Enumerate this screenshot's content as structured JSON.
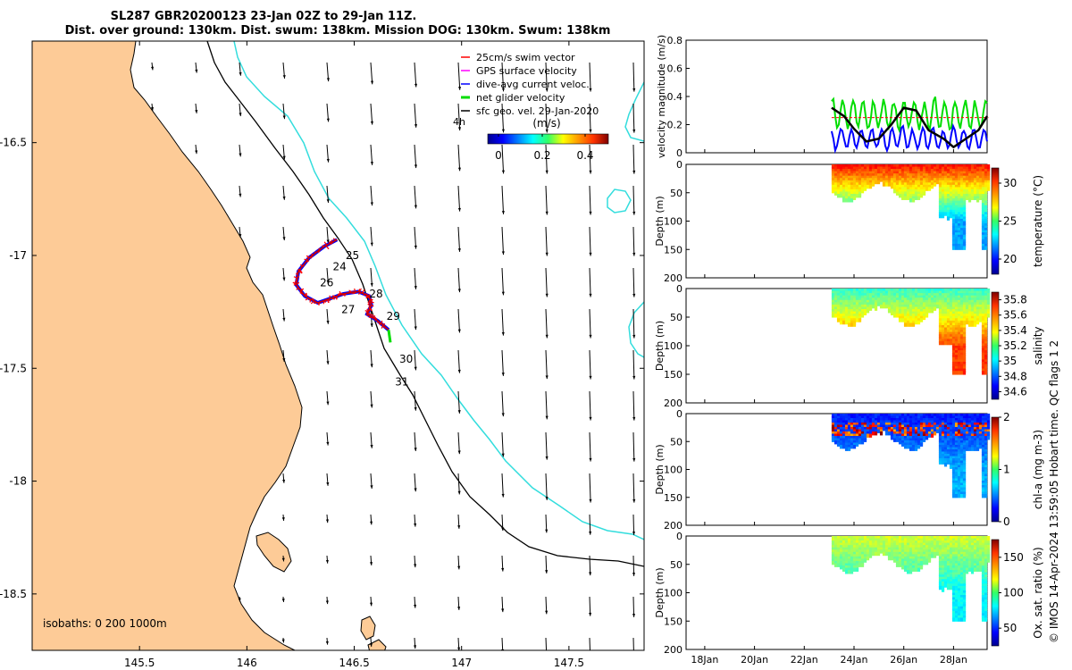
{
  "header": {
    "title_line1": "SL287 GBR20200123 23-Jan 02Z to 29-Jan 11Z.",
    "title_line2": "Dist. over ground: 130km. Dist. swum: 138km. Mission DOG: 130km. Swum: 138km"
  },
  "side_note": "© IMOS 14-Apr-2024 13:59:05 Hobart time. QC flags 1  2",
  "map": {
    "x_ticks": [
      "145.5",
      "146",
      "146.5",
      "147",
      "147.5"
    ],
    "y_ticks": [
      "-16.5",
      "-17",
      "-17.5",
      "-18",
      "-18.5"
    ],
    "isobaths_label": "isobaths: 0   200  1000m",
    "legend": [
      {
        "label": "25cm/s swim vector",
        "color": "#ff0000"
      },
      {
        "label": "GPS surface velocity",
        "color": "#ff00ff"
      },
      {
        "label": "dive-avg current veloc.",
        "color": "#0000ff"
      },
      {
        "label": "net glider velocity",
        "color": "#00dd00"
      },
      {
        "label": "sfc geo. vel. 29-Jan-2020",
        "color": "#000000"
      }
    ],
    "colorbar_title": "(m/s)",
    "colorbar_ticks": [
      "0",
      "0.2",
      "0.4"
    ],
    "colorbar_extra": "4h",
    "day_labels": [
      "24",
      "25",
      "26",
      "27",
      "28",
      "29",
      "30",
      "31"
    ],
    "colors": {
      "land": "#fdcb97",
      "coast": "#000000",
      "isobath200": "#000000",
      "isobath1000": "#33dddd"
    }
  },
  "panels": {
    "velocity": {
      "ylabel": "velocity magnitude (m/s)",
      "y_ticks": [
        "0",
        "0.2",
        "0.4",
        "0.6",
        "0.8"
      ]
    },
    "depth_ylabel": "Depth (m)",
    "depth_ticks": [
      "0",
      "50",
      "100",
      "150",
      "200"
    ],
    "temperature": {
      "cbar_label": "temperature (°C)",
      "cbar_ticks": [
        "30",
        "25",
        "20"
      ]
    },
    "salinity": {
      "cbar_label": "salinity",
      "cbar_ticks": [
        "35.8",
        "35.6",
        "35.4",
        "35.2",
        "35",
        "34.8",
        "34.6"
      ]
    },
    "chla": {
      "cbar_label": "chl-a (mg m-3)",
      "cbar_ticks": [
        "2",
        "1",
        "0"
      ]
    },
    "oxygen": {
      "cbar_label": "Ox. sat. ratio (%)",
      "cbar_ticks": [
        "150",
        "100",
        "50"
      ]
    },
    "x_ticks": [
      "18Jan",
      "20Jan",
      "22Jan",
      "24Jan",
      "26Jan",
      "28Jan"
    ]
  },
  "chart_data": [
    {
      "type": "scatter",
      "title": "SL287 GBR20200123 23-Jan 02Z to 29-Jan 11Z.",
      "xlim": [
        145.0,
        147.85
      ],
      "ylim": [
        -18.75,
        -16.05
      ],
      "track": [
        [
          146.42,
          -16.93
        ],
        [
          146.36,
          -16.96
        ],
        [
          146.29,
          -17.01
        ],
        [
          146.24,
          -17.07
        ],
        [
          146.23,
          -17.13
        ],
        [
          146.27,
          -17.18
        ],
        [
          146.33,
          -17.21
        ],
        [
          146.39,
          -17.19
        ],
        [
          146.45,
          -17.17
        ],
        [
          146.52,
          -17.16
        ],
        [
          146.57,
          -17.18
        ],
        [
          146.58,
          -17.22
        ],
        [
          146.56,
          -17.26
        ],
        [
          146.61,
          -17.29
        ],
        [
          146.66,
          -17.33
        ]
      ],
      "day_positions": [
        {
          "label": "24",
          "lon": 146.4,
          "lat": -17.05
        },
        {
          "label": "25",
          "lon": 146.46,
          "lat": -17.0
        },
        {
          "label": "26",
          "lon": 146.34,
          "lat": -17.12
        },
        {
          "label": "27",
          "lon": 146.44,
          "lat": -17.24
        },
        {
          "label": "28",
          "lon": 146.57,
          "lat": -17.17
        },
        {
          "label": "29",
          "lon": 146.65,
          "lat": -17.27
        },
        {
          "label": "30",
          "lon": 146.71,
          "lat": -17.46
        },
        {
          "label": "31",
          "lon": 146.69,
          "lat": -17.56
        }
      ]
    },
    {
      "type": "line",
      "ylabel": "velocity magnitude (m/s)",
      "ylim": [
        0,
        0.8
      ],
      "x_range": [
        "18Jan",
        "29Jan"
      ],
      "series": [
        {
          "color": "#00dd00",
          "start_day": 23.1,
          "end_day": 29.4,
          "mean": 0.27,
          "amp": 0.1
        },
        {
          "color": "#0000ff",
          "start_day": 23.1,
          "end_day": 29.4,
          "mean": 0.1,
          "amp": 0.07
        },
        {
          "color": "#000000",
          "start_day": 23.1,
          "end_day": 29.4,
          "values": [
            [
              23.1,
              0.32
            ],
            [
              23.6,
              0.26
            ],
            [
              24.0,
              0.17
            ],
            [
              24.5,
              0.08
            ],
            [
              25.0,
              0.1
            ],
            [
              25.5,
              0.2
            ],
            [
              26.0,
              0.32
            ],
            [
              26.5,
              0.3
            ],
            [
              27.0,
              0.16
            ],
            [
              27.6,
              0.1
            ],
            [
              28.0,
              0.04
            ],
            [
              28.5,
              0.1
            ],
            [
              29.0,
              0.16
            ],
            [
              29.4,
              0.26
            ]
          ]
        },
        {
          "color": "#ff0000",
          "start_day": 23.1,
          "end_day": 29.4,
          "values": [
            [
              23.1,
              0.25
            ],
            [
              29.4,
              0.25
            ]
          ]
        }
      ]
    },
    {
      "type": "heatmap",
      "variable": "temperature (°C)",
      "ylim": [
        0,
        200
      ],
      "clim": [
        18,
        32
      ],
      "surface_value": 30,
      "deep_value": 22
    },
    {
      "type": "heatmap",
      "variable": "salinity",
      "ylim": [
        0,
        200
      ],
      "clim": [
        34.5,
        35.9
      ],
      "surface_value": 35.1,
      "deep_value": 35.65
    },
    {
      "type": "heatmap",
      "variable": "chl-a (mg m-3)",
      "ylim": [
        0,
        200
      ],
      "clim": [
        0,
        2
      ],
      "surface_value": 0.3,
      "deep_value": 0.6
    },
    {
      "type": "heatmap",
      "variable": "Ox. sat. ratio (%)",
      "ylim": [
        0,
        200
      ],
      "clim": [
        25,
        175
      ],
      "surface_value": 112,
      "deep_value": 80
    }
  ]
}
